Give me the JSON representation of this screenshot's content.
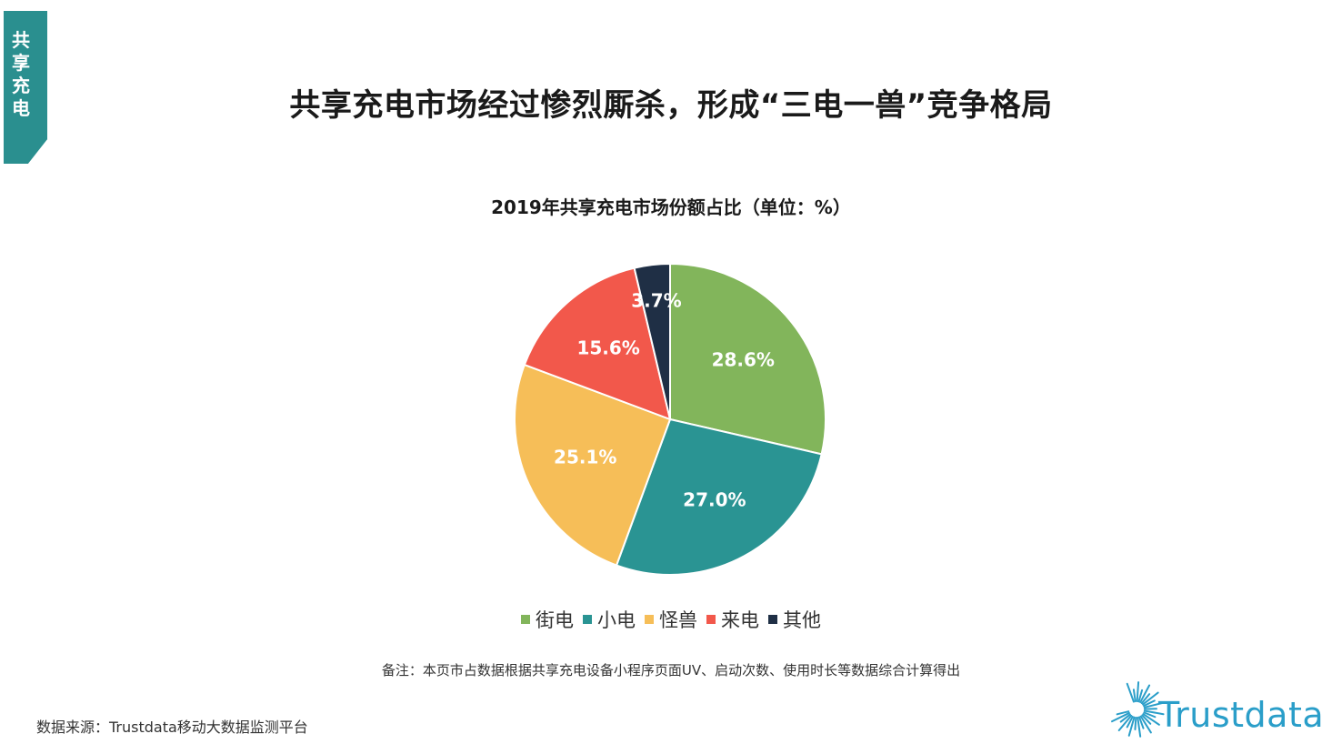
{
  "side_tab": {
    "label": "共享充电"
  },
  "main_title": "共享充电市场经过惨烈厮杀，形成“三电一兽”竞争格局",
  "chart_data": {
    "type": "pie",
    "title": "2019年共享充电市场份额占比（单位：%）",
    "unit": "%",
    "categories": [
      "街电",
      "小电",
      "怪兽",
      "来电",
      "其他"
    ],
    "values": [
      28.6,
      27.0,
      25.1,
      15.6,
      3.7
    ],
    "value_labels": [
      "28.6%",
      "27.0%",
      "25.1%",
      "15.6%",
      "3.7%"
    ],
    "colors": [
      "#82b55b",
      "#2a9493",
      "#f6be58",
      "#f2584b",
      "#1f2f45"
    ],
    "start_angle_deg": 0,
    "direction": "clockwise",
    "legend_position": "bottom",
    "legend_marker": "■"
  },
  "note": "备注：本页市占数据根据共享充电设备小程序页面UV、启动次数、使用时长等数据综合计算得出",
  "source": "数据来源：Trustdata移动大数据监测平台",
  "logo": {
    "text": "Trustdata",
    "icon": "sunburst-icon",
    "color": "#2a9ec9"
  }
}
